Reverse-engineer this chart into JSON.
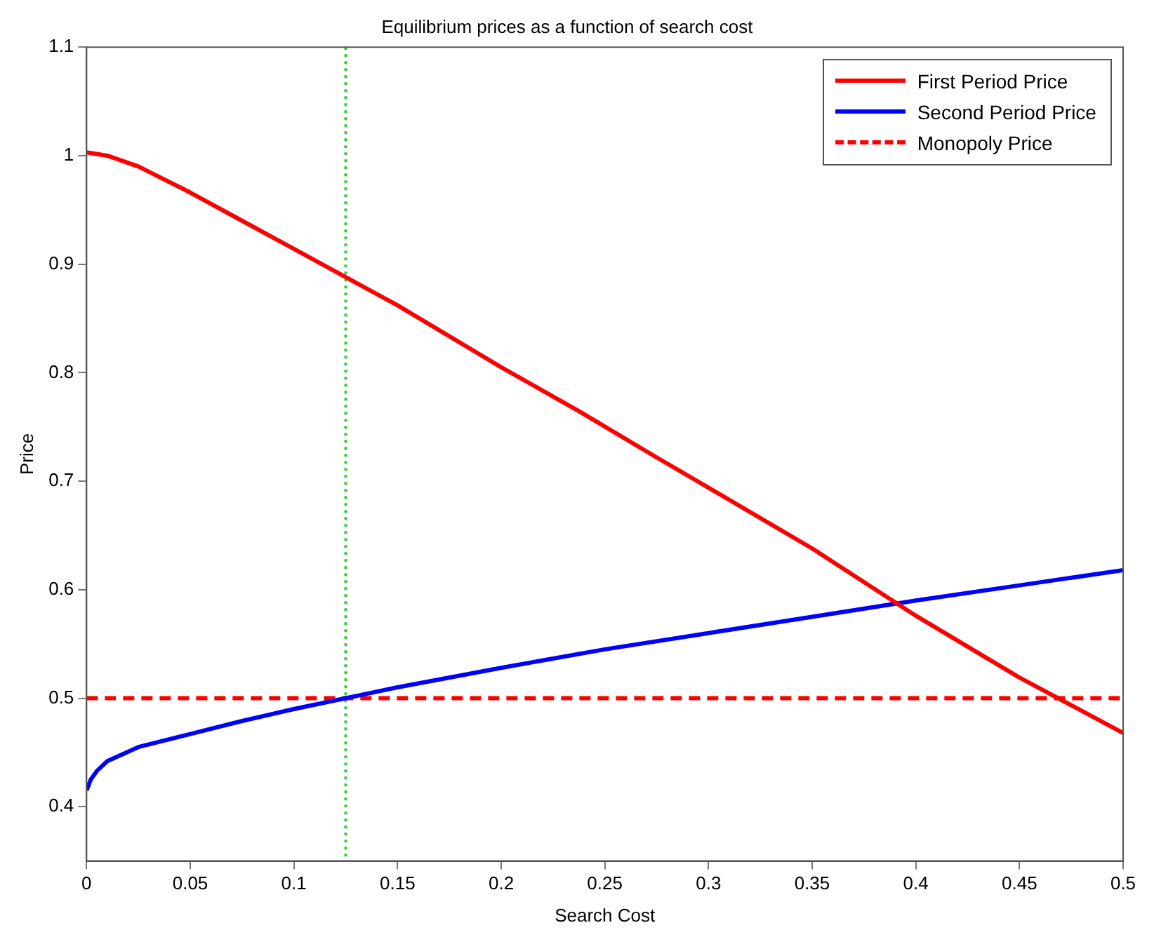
{
  "chart_data": {
    "type": "line",
    "title": "Equilibrium prices as a function of search cost",
    "xlabel": "Search Cost",
    "ylabel": "Price",
    "xlim": [
      0,
      0.5
    ],
    "ylim": [
      0.35,
      1.1
    ],
    "xticks": [
      0,
      0.05,
      0.1,
      0.15,
      0.2,
      0.25,
      0.3,
      0.35,
      0.4,
      0.45,
      0.5
    ],
    "yticks": [
      0.4,
      0.5,
      0.6,
      0.7,
      0.8,
      0.9,
      1,
      1.1
    ],
    "grid": false,
    "legend": "top right",
    "marker": "none",
    "series": [
      {
        "name": "First Period Price",
        "color": "#ff0000",
        "line_style": "solid",
        "x": [
          0,
          0.01,
          0.025,
          0.05,
          0.075,
          0.1,
          0.125,
          0.15,
          0.2,
          0.238,
          0.274,
          0.3,
          0.35,
          0.4,
          0.45,
          0.5
        ],
        "values": [
          1.003,
          1.0,
          0.99,
          0.966,
          0.94,
          0.914,
          0.888,
          0.862,
          0.805,
          0.764,
          0.723,
          0.694,
          0.638,
          0.576,
          0.519,
          0.468
        ]
      },
      {
        "name": "Second Period Price",
        "color": "#0000ff",
        "line_style": "solid",
        "x": [
          0,
          0.002,
          0.005,
          0.01,
          0.025,
          0.05,
          0.075,
          0.1,
          0.125,
          0.15,
          0.2,
          0.25,
          0.3,
          0.35,
          0.4,
          0.45,
          0.5
        ],
        "values": [
          0.415,
          0.425,
          0.433,
          0.442,
          0.455,
          0.467,
          0.479,
          0.49,
          0.5,
          0.51,
          0.528,
          0.545,
          0.56,
          0.575,
          0.59,
          0.604,
          0.618
        ]
      },
      {
        "name": "Monopoly Price",
        "color": "#ff0000",
        "line_style": "dashed",
        "x": [
          0,
          0.5
        ],
        "values": [
          0.5,
          0.5
        ]
      }
    ],
    "ref_lines": [
      {
        "axis": "x",
        "value": 0.125,
        "color": "#33cc33",
        "line_style": "dotted"
      }
    ]
  }
}
